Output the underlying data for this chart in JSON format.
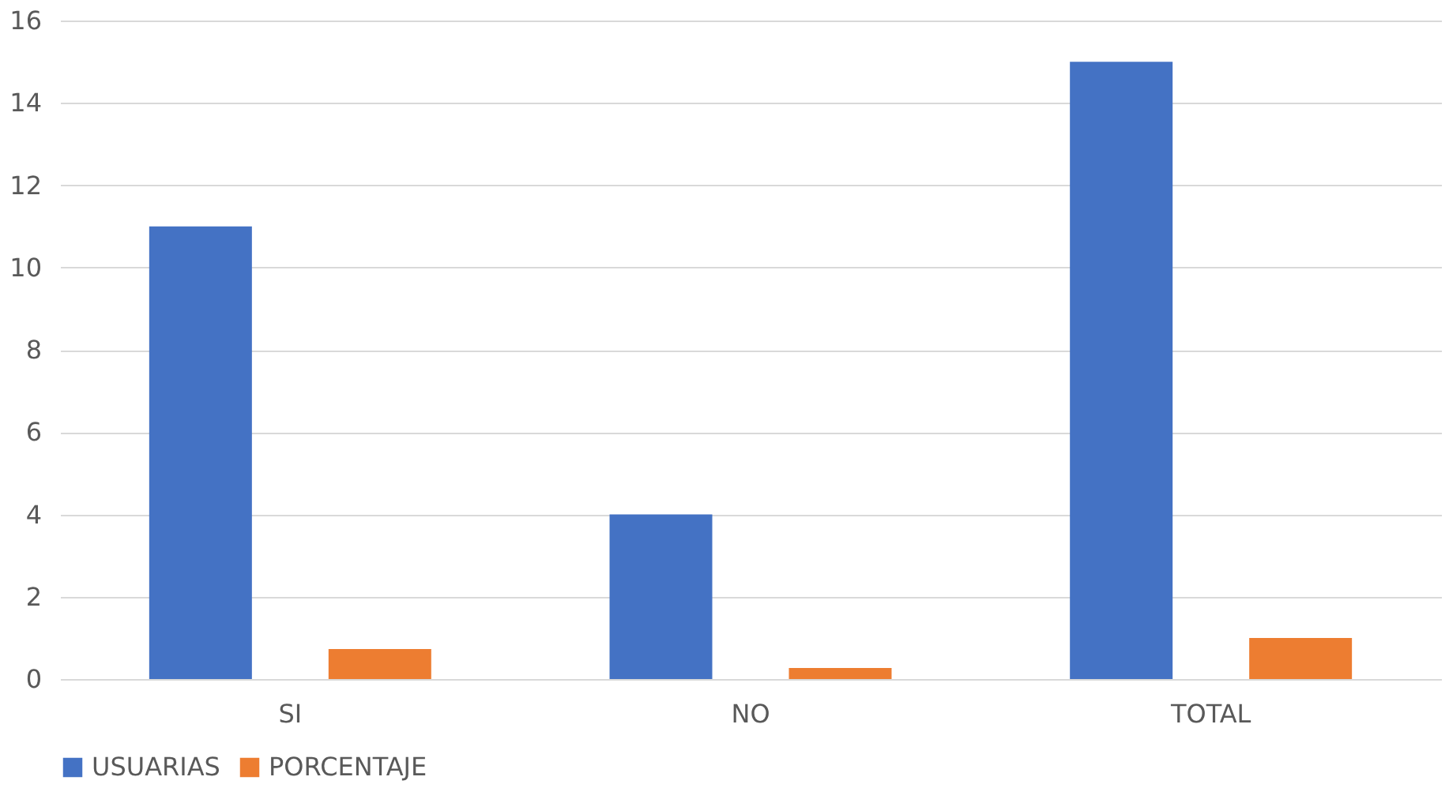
{
  "chart_data": {
    "type": "bar",
    "categories": [
      "SI",
      "NO",
      "TOTAL"
    ],
    "series": [
      {
        "name": "USUARIAS",
        "color": "#4472c4",
        "values": [
          11,
          4,
          15
        ]
      },
      {
        "name": "PORCENTAJE",
        "color": "#ed7d31",
        "values": [
          0.73,
          0.27,
          1
        ]
      }
    ],
    "ylim": [
      0,
      16
    ],
    "yticks": [
      0,
      2,
      4,
      6,
      8,
      10,
      12,
      14,
      16
    ],
    "grid": "y",
    "legend": "bottom"
  }
}
